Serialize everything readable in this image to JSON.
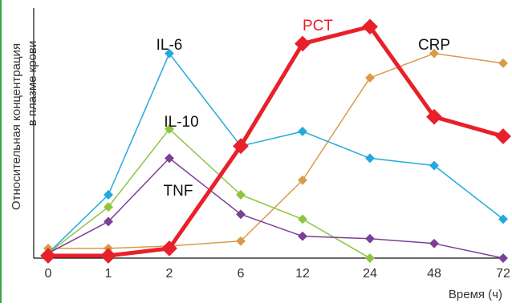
{
  "chart_data": {
    "type": "line",
    "categories": [
      "0",
      "1",
      "2",
      "6",
      "12",
      "24",
      "48",
      "72"
    ],
    "title": "",
    "ylabel_lines": [
      "Относительная концентрация",
      "в плазме крови"
    ],
    "xlabel": "Время (ч)",
    "ylim": [
      0,
      100
    ],
    "grid": false,
    "series": [
      {
        "name": "PCT",
        "color": "#e8202a",
        "width": 5,
        "values": [
          0,
          0,
          3,
          45,
          87,
          94,
          57,
          49
        ]
      },
      {
        "name": "CRP",
        "color": "#d99a4a",
        "width": 1.5,
        "values": [
          3,
          3,
          4,
          6,
          31,
          73,
          83,
          79
        ]
      },
      {
        "name": "IL-6",
        "color": "#22aadd",
        "width": 1.5,
        "values": [
          1,
          25,
          83,
          45,
          51,
          40,
          37,
          15
        ]
      },
      {
        "name": "IL-10",
        "color": "#8cc63e",
        "width": 1.5,
        "values": [
          1,
          20,
          52,
          25,
          15,
          -1,
          null,
          null
        ]
      },
      {
        "name": "TNF",
        "color": "#7b3f98",
        "width": 1.5,
        "values": [
          1,
          14,
          40,
          17,
          8,
          7,
          5,
          -1
        ]
      }
    ]
  }
}
